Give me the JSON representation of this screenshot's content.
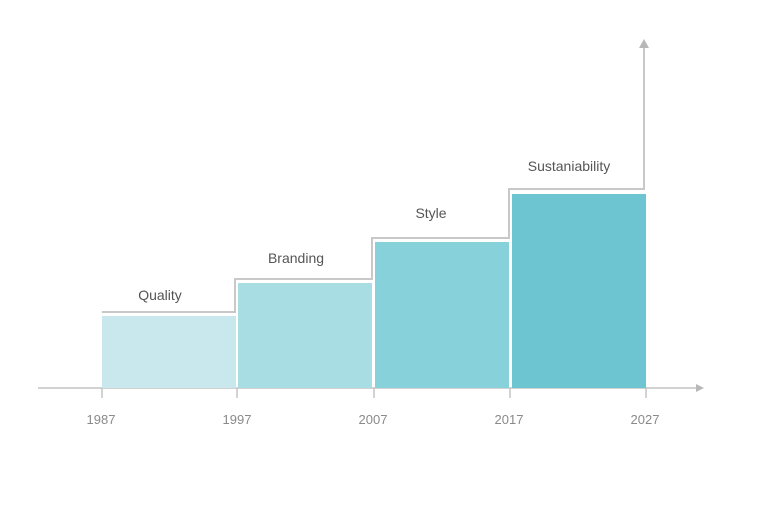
{
  "diagram": {
    "steps": [
      {
        "label": "Quality",
        "start": "1987",
        "end": "1997",
        "level": 1,
        "color": "#c8e8ee"
      },
      {
        "label": "Branding",
        "start": "1997",
        "end": "2007",
        "level": 2,
        "color": "#a8dde3"
      },
      {
        "label": "Style",
        "start": "2007",
        "end": "2017",
        "level": 3,
        "color": "#87d1db"
      },
      {
        "label": "Sustaniability",
        "start": "2017",
        "end": "2027",
        "level": 4,
        "color": "#6cc5d1"
      }
    ],
    "ticks": [
      "1987",
      "1997",
      "2007",
      "2017",
      "2027"
    ],
    "colors": {
      "axis": "#c4c4c4",
      "outline": "#c8c8c8",
      "arrow": "#b8b8b8"
    }
  }
}
